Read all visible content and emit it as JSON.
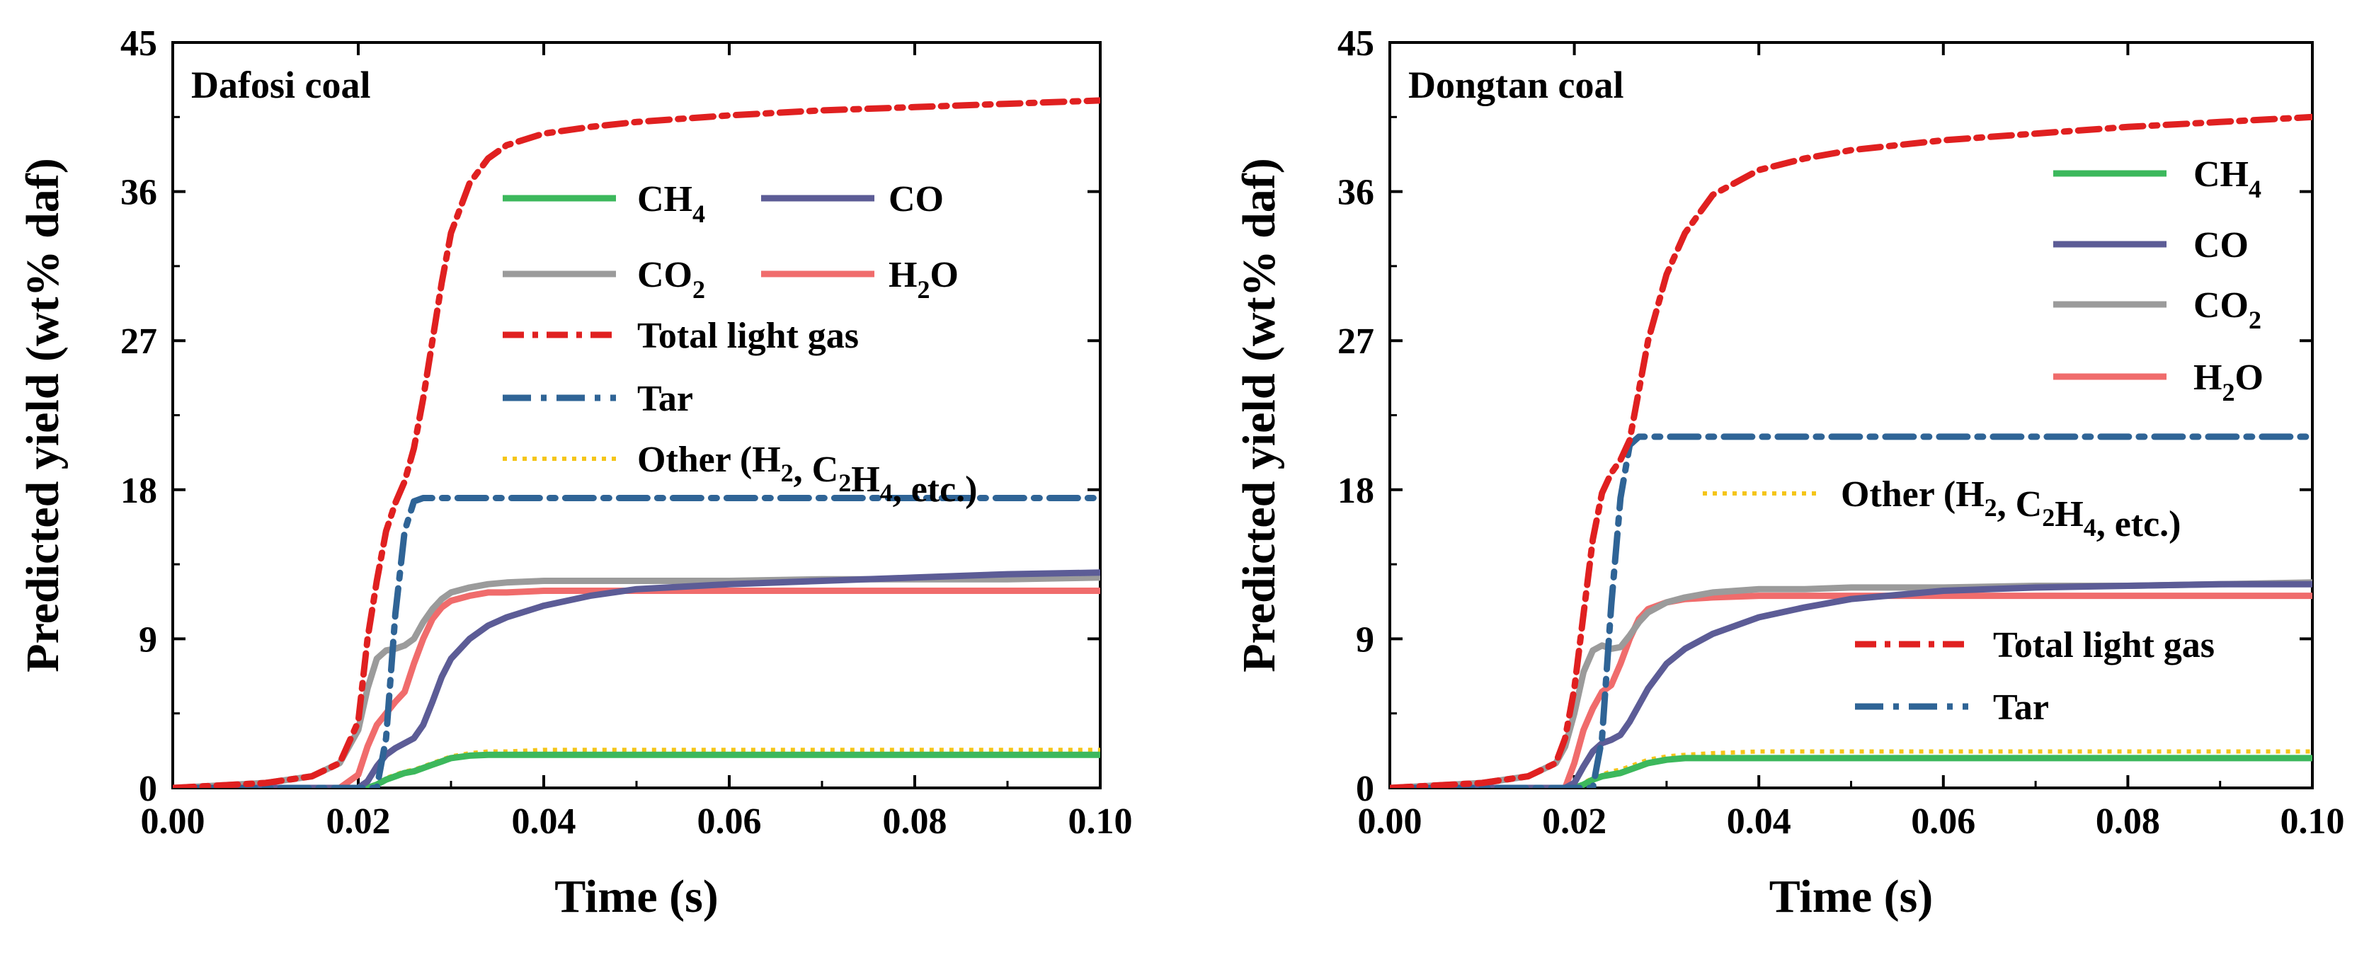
{
  "chart_data": [
    {
      "type": "line",
      "title": "Dafosi coal",
      "xlabel": "Time (s)",
      "ylabel": "Predicted yield (wt% daf)",
      "xlim": [
        0,
        0.1
      ],
      "ylim": [
        0,
        45
      ],
      "xticks": [
        "0.00",
        "0.02",
        "0.04",
        "0.06",
        "0.08",
        "0.10"
      ],
      "yticks": [
        "0",
        "9",
        "18",
        "27",
        "36",
        "45"
      ],
      "x": [
        0,
        0.01,
        0.015,
        0.018,
        0.02,
        0.021,
        0.022,
        0.023,
        0.024,
        0.025,
        0.026,
        0.027,
        0.028,
        0.029,
        0.03,
        0.032,
        0.034,
        0.036,
        0.04,
        0.045,
        0.05,
        0.06,
        0.07,
        0.08,
        0.09,
        0.1
      ],
      "series": [
        {
          "name": "CH4",
          "label_main": "CH",
          "label_sub": "4",
          "color": "#3cb85c",
          "dash": "solid",
          "values": [
            0,
            0,
            0,
            0,
            0,
            0,
            0.2,
            0.5,
            0.7,
            0.9,
            1.0,
            1.2,
            1.4,
            1.6,
            1.8,
            1.95,
            2.0,
            2.0,
            2.0,
            2.0,
            2.0,
            2.0,
            2.0,
            2.0,
            2.0,
            2.0
          ]
        },
        {
          "name": "CO",
          "label_main": "CO",
          "label_sub": "",
          "color": "#5c5c96",
          "dash": "solid",
          "values": [
            0,
            0,
            0,
            0,
            0,
            0.4,
            1.3,
            2.0,
            2.4,
            2.7,
            3.0,
            3.8,
            5.2,
            6.7,
            7.8,
            9.0,
            9.8,
            10.3,
            11.0,
            11.6,
            12.0,
            12.3,
            12.5,
            12.7,
            12.9,
            13.0
          ]
        },
        {
          "name": "CO2",
          "label_main": "CO",
          "label_sub": "2",
          "color": "#9b9b9b",
          "dash": "solid",
          "values": [
            0,
            0.3,
            0.7,
            1.5,
            3.5,
            6.0,
            7.8,
            8.3,
            8.4,
            8.6,
            9.0,
            10.0,
            10.8,
            11.4,
            11.8,
            12.1,
            12.3,
            12.4,
            12.5,
            12.5,
            12.5,
            12.5,
            12.6,
            12.6,
            12.6,
            12.7
          ]
        },
        {
          "name": "H2O",
          "label_main": "H",
          "label_sub": "2",
          "label_tail": "O",
          "color": "#f06c6c",
          "dash": "solid",
          "values": [
            0,
            0,
            0,
            0,
            0.8,
            2.5,
            3.8,
            4.5,
            5.2,
            5.8,
            7.5,
            9.0,
            10.2,
            10.9,
            11.3,
            11.6,
            11.8,
            11.8,
            11.9,
            11.9,
            11.9,
            11.9,
            11.9,
            11.9,
            11.9,
            11.9
          ]
        },
        {
          "name": "Total light gas",
          "label_main": "Total light gas",
          "label_sub": "",
          "color": "#e02020",
          "dash": "dashdot",
          "values": [
            0,
            0.3,
            0.7,
            1.5,
            4.0,
            9.0,
            12.5,
            15.5,
            17.2,
            18.5,
            20.5,
            23.5,
            27.0,
            30.5,
            33.5,
            36.5,
            38.0,
            38.8,
            39.5,
            39.9,
            40.2,
            40.6,
            40.9,
            41.1,
            41.3,
            41.5
          ]
        },
        {
          "name": "Tar",
          "label_main": "Tar",
          "label_sub": "",
          "color": "#2f6496",
          "dash": "dashdotlong",
          "values": [
            0,
            0,
            0,
            0,
            0,
            0,
            0,
            3.0,
            10.5,
            15.5,
            17.3,
            17.5,
            17.5,
            17.5,
            17.5,
            17.5,
            17.5,
            17.5,
            17.5,
            17.5,
            17.5,
            17.5,
            17.5,
            17.5,
            17.5,
            17.5
          ]
        },
        {
          "name": "Other (H2, C2H4, etc.)",
          "label_main": "Other",
          "label_sub": "",
          "color": "#f5c518",
          "dash": "dotted",
          "values": [
            0,
            0,
            0,
            0,
            0,
            0,
            0.3,
            0.6,
            0.8,
            1.0,
            1.1,
            1.3,
            1.5,
            1.7,
            1.9,
            2.1,
            2.2,
            2.2,
            2.3,
            2.3,
            2.3,
            2.3,
            2.3,
            2.3,
            2.3,
            2.3
          ]
        }
      ]
    },
    {
      "type": "line",
      "title": "Dongtan coal",
      "xlabel": "Time (s)",
      "ylabel": "Predicted yield (wt% daf)",
      "xlim": [
        0,
        0.1
      ],
      "ylim": [
        0,
        45
      ],
      "xticks": [
        "0.00",
        "0.02",
        "0.04",
        "0.06",
        "0.08",
        "0.10"
      ],
      "yticks": [
        "0",
        "9",
        "18",
        "27",
        "36",
        "45"
      ],
      "x": [
        0,
        0.01,
        0.015,
        0.018,
        0.019,
        0.02,
        0.021,
        0.022,
        0.023,
        0.024,
        0.025,
        0.026,
        0.027,
        0.028,
        0.03,
        0.032,
        0.035,
        0.04,
        0.045,
        0.05,
        0.06,
        0.07,
        0.08,
        0.09,
        0.1
      ],
      "series": [
        {
          "name": "CH4",
          "label_main": "CH",
          "label_sub": "4",
          "color": "#3cb85c",
          "dash": "solid",
          "values": [
            0,
            0,
            0,
            0,
            0,
            0,
            0.2,
            0.5,
            0.7,
            0.8,
            0.9,
            1.1,
            1.3,
            1.5,
            1.7,
            1.8,
            1.8,
            1.8,
            1.8,
            1.8,
            1.8,
            1.8,
            1.8,
            1.8,
            1.8
          ]
        },
        {
          "name": "CO",
          "label_main": "CO",
          "label_sub": "",
          "color": "#5c5c96",
          "dash": "solid",
          "values": [
            0,
            0,
            0,
            0,
            0,
            0.3,
            1.3,
            2.2,
            2.7,
            2.9,
            3.2,
            4.0,
            5.0,
            6.0,
            7.5,
            8.4,
            9.3,
            10.3,
            10.9,
            11.4,
            11.9,
            12.1,
            12.2,
            12.3,
            12.3
          ]
        },
        {
          "name": "CO2",
          "label_main": "CO",
          "label_sub": "2",
          "color": "#9b9b9b",
          "dash": "solid",
          "values": [
            0,
            0.3,
            0.7,
            1.5,
            2.5,
            4.5,
            7.0,
            8.3,
            8.6,
            8.4,
            8.5,
            9.2,
            10.0,
            10.6,
            11.2,
            11.5,
            11.8,
            12.0,
            12.0,
            12.1,
            12.1,
            12.2,
            12.2,
            12.3,
            12.4
          ]
        },
        {
          "name": "H2O",
          "label_main": "H",
          "label_sub": "2",
          "label_tail": "O",
          "color": "#f06c6c",
          "dash": "solid",
          "values": [
            0,
            0,
            0,
            0,
            0,
            1.5,
            3.5,
            4.8,
            5.8,
            6.2,
            7.5,
            9.0,
            10.2,
            10.8,
            11.2,
            11.4,
            11.5,
            11.6,
            11.6,
            11.6,
            11.6,
            11.6,
            11.6,
            11.6,
            11.6
          ]
        },
        {
          "name": "Total light gas",
          "label_main": "Total light gas",
          "label_sub": "",
          "color": "#e02020",
          "dash": "dashdot",
          "values": [
            0,
            0.3,
            0.7,
            1.5,
            3.0,
            6.0,
            10.5,
            15.0,
            17.8,
            19.0,
            19.8,
            21.0,
            24.0,
            27.0,
            31.0,
            33.5,
            35.8,
            37.3,
            38.0,
            38.5,
            39.1,
            39.5,
            39.9,
            40.2,
            40.5
          ]
        },
        {
          "name": "Tar",
          "label_main": "Tar",
          "label_sub": "",
          "color": "#2f6496",
          "dash": "dashdotlong",
          "values": [
            0,
            0,
            0,
            0,
            0,
            0,
            0,
            0,
            3.0,
            11.0,
            17.5,
            20.7,
            21.2,
            21.2,
            21.2,
            21.2,
            21.2,
            21.2,
            21.2,
            21.2,
            21.2,
            21.2,
            21.2,
            21.2,
            21.2
          ]
        },
        {
          "name": "Other (H2, C2H4, etc.)",
          "label_main": "Other",
          "label_sub": "",
          "color": "#f5c518",
          "dash": "dotted",
          "values": [
            0,
            0,
            0,
            0,
            0,
            0,
            0.3,
            0.6,
            0.8,
            1.0,
            1.1,
            1.3,
            1.5,
            1.7,
            1.9,
            2.0,
            2.1,
            2.2,
            2.2,
            2.2,
            2.2,
            2.2,
            2.2,
            2.2,
            2.2
          ]
        }
      ]
    }
  ],
  "legend_text": {
    "other_open": "Other (H",
    "other_sub1": "2",
    "other_mid": ", C",
    "other_sub2": "2",
    "other_h": "H",
    "other_sub3": "4",
    "other_close": ", etc.)"
  }
}
